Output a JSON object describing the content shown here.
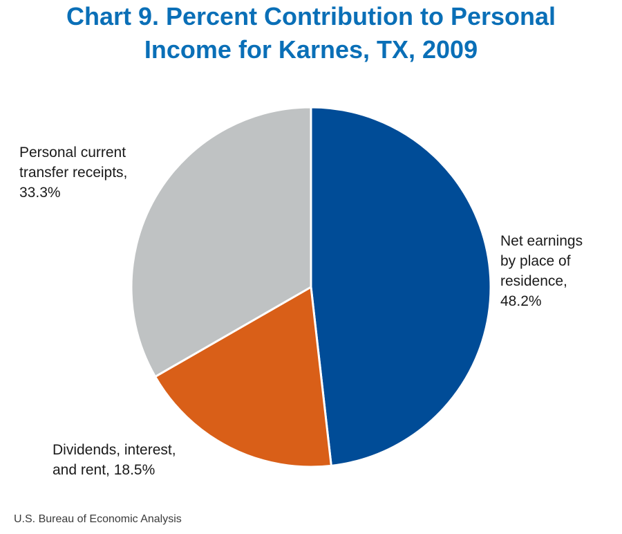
{
  "chart_data": {
    "type": "pie",
    "title_lines": [
      "Chart 9. Percent Contribution to Personal",
      "Income for Karnes, TX, 2009"
    ],
    "slices": [
      {
        "label_lines": [
          "Net earnings",
          "by place of",
          "residence,",
          "48.2%"
        ],
        "name": "Net earnings by place of residence",
        "value": 48.2,
        "color": "#004c97"
      },
      {
        "label_lines": [
          "Dividends, interest,",
          "and rent, 18.5%"
        ],
        "name": "Dividends, interest, and rent",
        "value": 18.5,
        "color": "#d95f18"
      },
      {
        "label_lines": [
          "Personal current",
          "transfer receipts,",
          "33.3%"
        ],
        "name": "Personal current transfer receipts",
        "value": 33.3,
        "color": "#bfc2c3"
      }
    ],
    "source": "U.S. Bureau of Economic Analysis"
  }
}
